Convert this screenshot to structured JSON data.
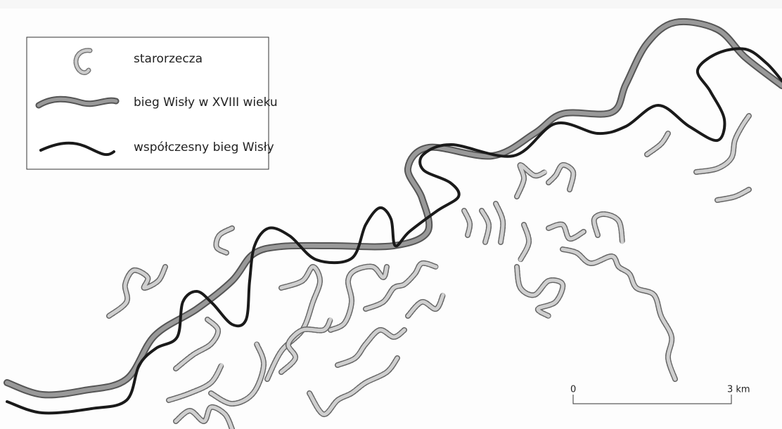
{
  "legend": {
    "items": [
      {
        "label": "starorzecza"
      },
      {
        "label": "bieg Wisły w XVIII wieku"
      },
      {
        "label": "współczesny bieg Wisły"
      }
    ]
  },
  "scale": {
    "start": "0",
    "end": "3 km"
  }
}
